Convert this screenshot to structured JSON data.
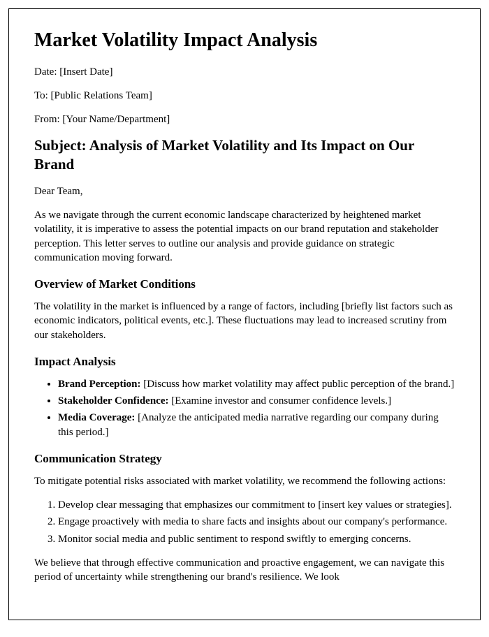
{
  "title": "Market Volatility Impact Analysis",
  "meta": {
    "date_label": "Date: [Insert Date]",
    "to_label": "To: [Public Relations Team]",
    "from_label": "From: [Your Name/Department]"
  },
  "subject": "Subject: Analysis of Market Volatility and Its Impact on Our Brand",
  "greeting": "Dear Team,",
  "intro": "As we navigate through the current economic landscape characterized by heightened market volatility, it is imperative to assess the potential impacts on our brand reputation and stakeholder perception. This letter serves to outline our analysis and provide guidance on strategic communication moving forward.",
  "sections": {
    "overview": {
      "heading": "Overview of Market Conditions",
      "body": "The volatility in the market is influenced by a range of factors, including [briefly list factors such as economic indicators, political events, etc.]. These fluctuations may lead to increased scrutiny from our stakeholders."
    },
    "impact": {
      "heading": "Impact Analysis",
      "items": [
        {
          "label": "Brand Perception:",
          "text": " [Discuss how market volatility may affect public perception of the brand.]"
        },
        {
          "label": "Stakeholder Confidence:",
          "text": " [Examine investor and consumer confidence levels.]"
        },
        {
          "label": "Media Coverage:",
          "text": " [Analyze the anticipated media narrative regarding our company during this period.]"
        }
      ]
    },
    "strategy": {
      "heading": "Communication Strategy",
      "intro": "To mitigate potential risks associated with market volatility, we recommend the following actions:",
      "steps": [
        "Develop clear messaging that emphasizes our commitment to [insert key values or strategies].",
        "Engage proactively with media to share facts and insights about our company's performance.",
        "Monitor social media and public sentiment to respond swiftly to emerging concerns."
      ]
    }
  },
  "closing": "We believe that through effective communication and proactive engagement, we can navigate this period of uncertainty while strengthening our brand's resilience. We look"
}
